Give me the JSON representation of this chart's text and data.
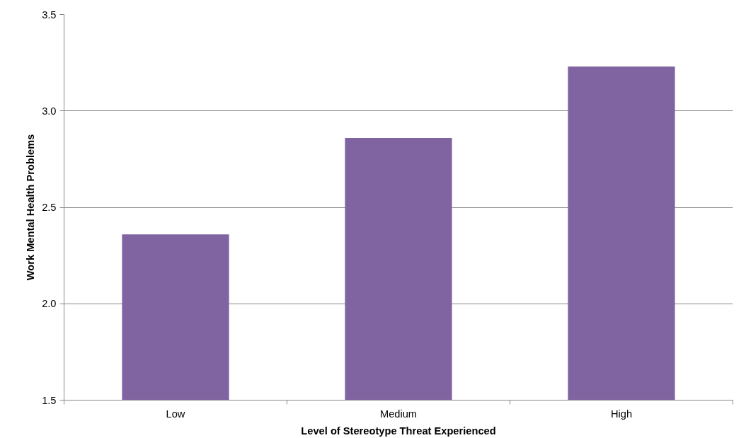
{
  "chart_data": {
    "type": "bar",
    "xlabel": "Level of Stereotype Threat Experienced",
    "ylabel": "Work Mental Health Problems",
    "categories": [
      "Low",
      "Medium",
      "High"
    ],
    "values": [
      2.36,
      2.86,
      3.23
    ],
    "color": "#8064a2",
    "ylim": [
      1.5,
      3.5
    ],
    "yticks": [
      {
        "value": 1.5,
        "label": "1.5"
      },
      {
        "value": 2.0,
        "label": "2.0"
      },
      {
        "value": 2.5,
        "label": "2.5"
      },
      {
        "value": 3.0,
        "label": "3.0"
      },
      {
        "value": 3.5,
        "label": "3.5"
      }
    ],
    "grid": "y"
  }
}
